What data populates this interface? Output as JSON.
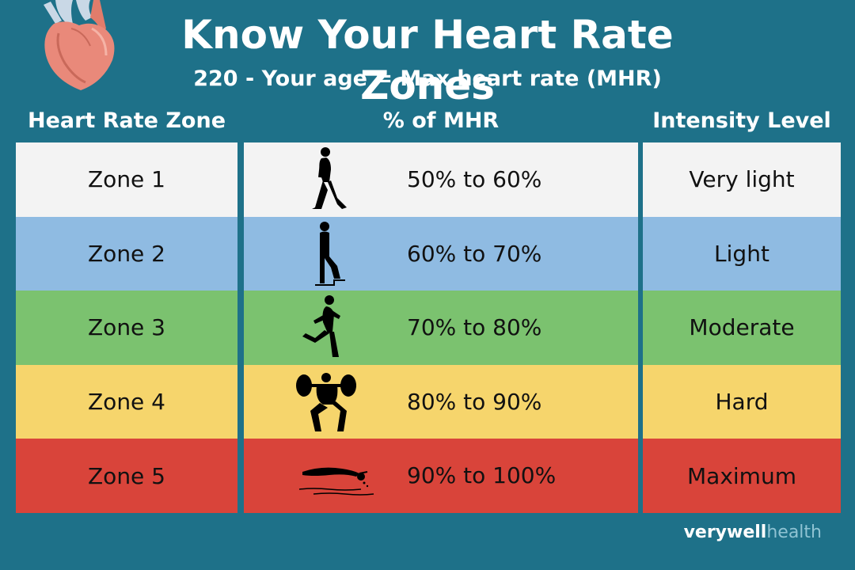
{
  "header": {
    "title": "Know Your Heart Rate Zones",
    "subtitle": "220 - Your age = Max heart rate (MHR)"
  },
  "columns": {
    "zone": "Heart Rate Zone",
    "percent": "% of MHR",
    "intensity": "Intensity Level"
  },
  "rows": [
    {
      "zone": "Zone 1",
      "percent": "50% to 60%",
      "intensity": "Very light",
      "color": "#f3f3f3",
      "icon": "walking-icon"
    },
    {
      "zone": "Zone 2",
      "percent": "60% to 70%",
      "intensity": "Light",
      "color": "#8fbbe2",
      "icon": "stair-climbing-icon"
    },
    {
      "zone": "Zone 3",
      "percent": "70% to 80%",
      "intensity": "Moderate",
      "color": "#7bc26f",
      "icon": "running-icon"
    },
    {
      "zone": "Zone 4",
      "percent": "80% to 90%",
      "intensity": "Hard",
      "color": "#f6d56c",
      "icon": "weightlifting-icon"
    },
    {
      "zone": "Zone 5",
      "percent": "90% to 100%",
      "intensity": "Maximum",
      "color": "#d9443a",
      "icon": "swimming-icon"
    }
  ],
  "brand": {
    "part1": "verywell",
    "part2": "health"
  },
  "colors": {
    "background": "#1e7189",
    "text": "#111111",
    "header_text": "#ffffff"
  }
}
